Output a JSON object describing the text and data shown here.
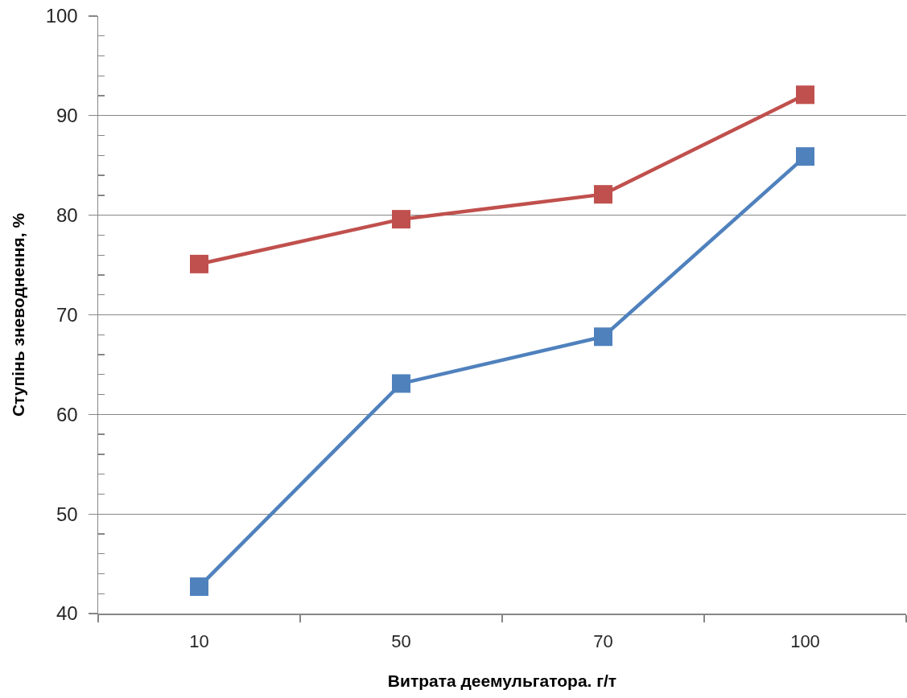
{
  "chart_data": {
    "type": "line",
    "xlabel": "Витрата деемульгатора. г/т",
    "ylabel": "Ступінь зневоднення, %",
    "categories": [
      "10",
      "50",
      "70",
      "100"
    ],
    "series": [
      {
        "color": "#4f81bd",
        "values": [
          42.7,
          63.1,
          67.8,
          85.9
        ]
      },
      {
        "color": "#c0504d",
        "values": [
          75.1,
          79.6,
          82.1,
          92.1
        ]
      }
    ],
    "ylim": [
      40,
      100
    ],
    "yticks": [
      40,
      {
        "value": 42,
        "label": null
      },
      {
        "value": 44,
        "label": null
      },
      {
        "value": 46,
        "label": null
      },
      {
        "value": 48,
        "label": null
      },
      50,
      {
        "value": 52,
        "label": null
      },
      {
        "value": 54,
        "label": null
      },
      {
        "value": 56,
        "label": null
      },
      {
        "value": 58,
        "label": null
      },
      60,
      {
        "value": 62,
        "label": null
      },
      {
        "value": 64,
        "label": null
      },
      {
        "value": 66,
        "label": null
      },
      {
        "value": 68,
        "label": null
      },
      70,
      {
        "value": 72,
        "label": null
      },
      {
        "value": 74,
        "label": null
      },
      {
        "value": 76,
        "label": null
      },
      {
        "value": 78,
        "label": null
      },
      80,
      {
        "value": 82,
        "label": null
      },
      {
        "value": 84,
        "label": null
      },
      {
        "value": 86,
        "label": null
      },
      {
        "value": 88,
        "label": null
      },
      90,
      {
        "value": 92,
        "label": null
      },
      {
        "value": 94,
        "label": null
      },
      {
        "value": 96,
        "label": null
      },
      {
        "value": 98,
        "label": null
      },
      100
    ],
    "grid": "y",
    "marker": "square",
    "line_style": "solid"
  }
}
